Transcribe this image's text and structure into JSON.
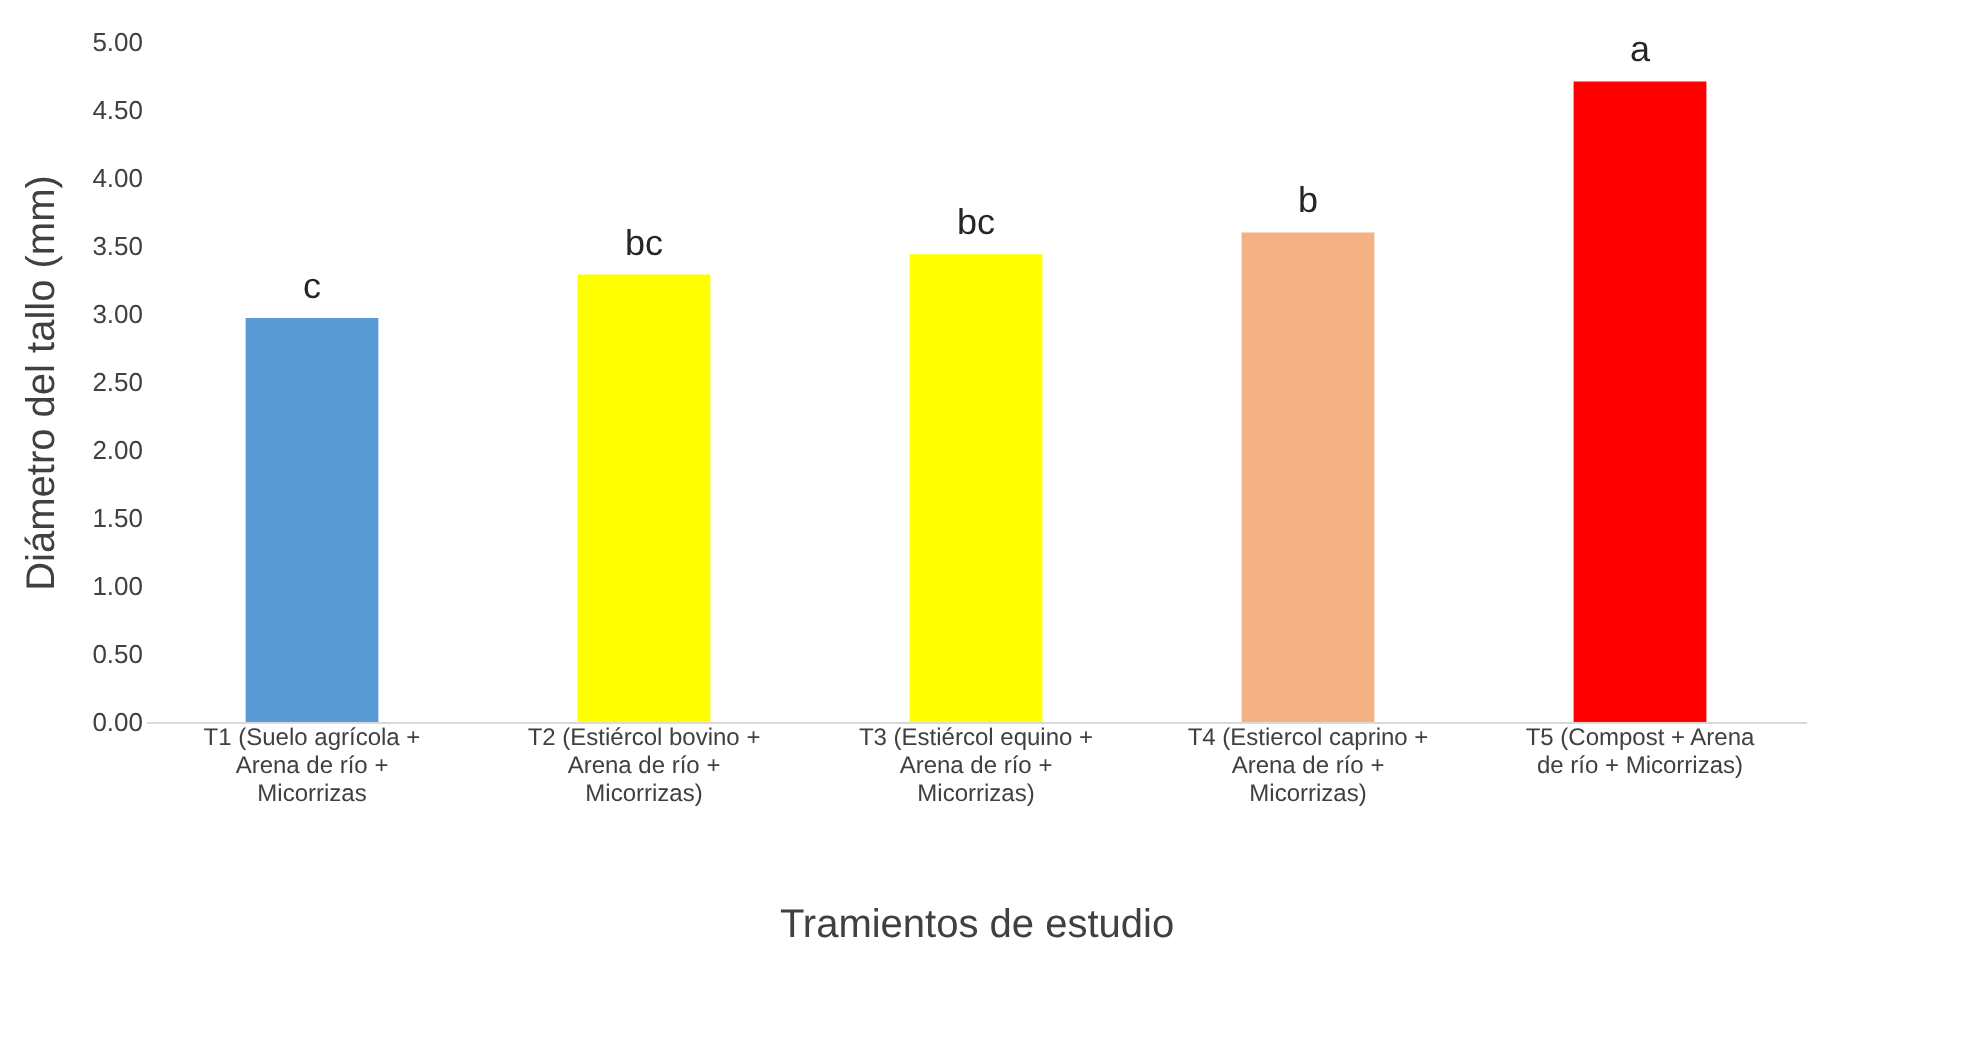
{
  "chart_data": {
    "type": "bar",
    "xlabel": "Tramientos de estudio",
    "ylabel": "Diámetro del tallo (mm)",
    "categories": [
      "T1 (Suelo agrícola +\nArena de río +\nMicorrizas",
      "T2 (Estiércol bovino +\nArena de río +\nMicorrizas)",
      "T3 (Estiércol equino +\nArena de río +\nMicorrizas)",
      "T4 (Estiercol caprino +\nArena de río +\nMicorrizas)",
      "T5 (Compost + Arena\nde río + Micorrizas)"
    ],
    "values": [
      2.97,
      3.29,
      3.44,
      3.6,
      4.71
    ],
    "colors": [
      "#5b9bd5",
      "#ffff00",
      "#ffff00",
      "#f4b183",
      "#ff0000"
    ],
    "ylim": [
      0,
      5
    ],
    "yticks": [
      {
        "value": 0,
        "label": "0.00"
      },
      {
        "value": 0.5,
        "label": "0.50"
      },
      {
        "value": 1,
        "label": "1.00"
      },
      {
        "value": 1.5,
        "label": "1.50"
      },
      {
        "value": 2,
        "label": "2.00"
      },
      {
        "value": 2.5,
        "label": "2.50"
      },
      {
        "value": 3,
        "label": "3.00"
      },
      {
        "value": 3.5,
        "label": "3.50"
      },
      {
        "value": 4,
        "label": "4.00"
      },
      {
        "value": 4.5,
        "label": "4.50"
      },
      {
        "value": 5,
        "label": "5.00"
      }
    ],
    "annotations": [
      "c",
      "bc",
      "bc",
      "b",
      "a"
    ],
    "grid": false
  }
}
